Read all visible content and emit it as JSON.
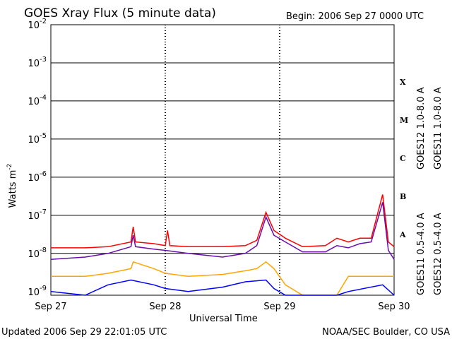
{
  "chart_data": {
    "type": "line",
    "title": "GOES Xray Flux (5 minute data)",
    "begin_label": "Begin:  2006 Sep 27 0000 UTC",
    "xlabel": "Universal Time",
    "ylabel": "Watts m",
    "ylabel_superscript": "-2",
    "y_scale": "log",
    "ylim": [
      8e-10,
      0.01
    ],
    "x_ticks": [
      "Sep 27",
      "Sep 28",
      "Sep 29",
      "Sep 30"
    ],
    "x_unit": "days since Sep 27 0000 UTC",
    "xlim": [
      0,
      3
    ],
    "y_ticks": [
      {
        "base": "10",
        "exp": "-9",
        "value": 1e-09
      },
      {
        "base": "10",
        "exp": "-8",
        "value": 1e-08
      },
      {
        "base": "10",
        "exp": "-7",
        "value": 1e-07
      },
      {
        "base": "10",
        "exp": "-6",
        "value": 1e-06
      },
      {
        "base": "10",
        "exp": "-5",
        "value": 1e-05
      },
      {
        "base": "10",
        "exp": "-4",
        "value": 0.0001
      },
      {
        "base": "10",
        "exp": "-3",
        "value": 0.001
      },
      {
        "base": "10",
        "exp": "-2",
        "value": 0.01
      }
    ],
    "flare_classes": [
      {
        "label": "A",
        "value": 1e-08
      },
      {
        "label": "B",
        "value": 1e-07
      },
      {
        "label": "C",
        "value": 1e-06
      },
      {
        "label": "M",
        "value": 1e-05
      },
      {
        "label": "X",
        "value": 0.0001
      }
    ],
    "grid": "horizontal at each decade, dashed vertical at day boundaries",
    "series": [
      {
        "name": "GOES12 1.0-8.0 A",
        "color": "#ff0000",
        "points": [
          [
            0.0,
            1.4e-08
          ],
          [
            0.3,
            1.4e-08
          ],
          [
            0.5,
            1.5e-08
          ],
          [
            0.7,
            2e-08
          ],
          [
            0.72,
            5e-08
          ],
          [
            0.74,
            2e-08
          ],
          [
            0.9,
            1.8e-08
          ],
          [
            1.0,
            1.6e-08
          ],
          [
            1.02,
            4e-08
          ],
          [
            1.04,
            1.6e-08
          ],
          [
            1.2,
            1.5e-08
          ],
          [
            1.5,
            1.5e-08
          ],
          [
            1.7,
            1.6e-08
          ],
          [
            1.8,
            2.2e-08
          ],
          [
            1.88,
            1.2e-07
          ],
          [
            1.95,
            4e-08
          ],
          [
            2.05,
            2.5e-08
          ],
          [
            2.2,
            1.5e-08
          ],
          [
            2.4,
            1.6e-08
          ],
          [
            2.5,
            2.5e-08
          ],
          [
            2.6,
            2e-08
          ],
          [
            2.7,
            2.5e-08
          ],
          [
            2.8,
            2.5e-08
          ],
          [
            2.9,
            3.5e-07
          ],
          [
            2.95,
            2e-08
          ],
          [
            3.0,
            1.5e-08
          ]
        ]
      },
      {
        "name": "GOES11 1.0-8.0 A",
        "color": "#6a0dad",
        "points": [
          [
            0.0,
            7e-09
          ],
          [
            0.3,
            8e-09
          ],
          [
            0.5,
            1e-08
          ],
          [
            0.7,
            1.5e-08
          ],
          [
            0.72,
            3e-08
          ],
          [
            0.74,
            1.5e-08
          ],
          [
            0.9,
            1.3e-08
          ],
          [
            1.0,
            1.2e-08
          ],
          [
            1.2,
            1e-08
          ],
          [
            1.5,
            8e-09
          ],
          [
            1.7,
            1e-08
          ],
          [
            1.8,
            1.6e-08
          ],
          [
            1.88,
            9e-08
          ],
          [
            1.95,
            3e-08
          ],
          [
            2.05,
            2e-08
          ],
          [
            2.2,
            1.1e-08
          ],
          [
            2.4,
            1.1e-08
          ],
          [
            2.5,
            1.6e-08
          ],
          [
            2.6,
            1.4e-08
          ],
          [
            2.7,
            1.8e-08
          ],
          [
            2.8,
            2e-08
          ],
          [
            2.9,
            2.2e-07
          ],
          [
            2.95,
            1.2e-08
          ],
          [
            3.0,
            7e-09
          ]
        ]
      },
      {
        "name": "GOES11 0.5-4.0 A",
        "color": "#ffa500",
        "points": [
          [
            0.0,
            2.5e-09
          ],
          [
            0.3,
            2.5e-09
          ],
          [
            0.5,
            3e-09
          ],
          [
            0.7,
            4e-09
          ],
          [
            0.72,
            6e-09
          ],
          [
            0.9,
            4e-09
          ],
          [
            1.0,
            3e-09
          ],
          [
            1.2,
            2.5e-09
          ],
          [
            1.5,
            2.8e-09
          ],
          [
            1.7,
            3.5e-09
          ],
          [
            1.8,
            4e-09
          ],
          [
            1.88,
            6e-09
          ],
          [
            1.95,
            4e-09
          ],
          [
            2.05,
            1.5e-09
          ],
          [
            2.2,
            8e-10
          ],
          [
            2.5,
            8e-10
          ],
          [
            2.6,
            2.5e-09
          ],
          [
            2.7,
            2.5e-09
          ],
          [
            2.8,
            2.5e-09
          ],
          [
            3.0,
            2.5e-09
          ]
        ]
      },
      {
        "name": "GOES12 0.5-4.0 A",
        "color": "#0000ff",
        "points": [
          [
            0.0,
            1e-09
          ],
          [
            0.3,
            8e-10
          ],
          [
            0.5,
            1.5e-09
          ],
          [
            0.7,
            2e-09
          ],
          [
            0.9,
            1.5e-09
          ],
          [
            1.0,
            1.2e-09
          ],
          [
            1.2,
            1e-09
          ],
          [
            1.5,
            1.3e-09
          ],
          [
            1.7,
            1.8e-09
          ],
          [
            1.88,
            2e-09
          ],
          [
            1.95,
            1.2e-09
          ],
          [
            2.05,
            8e-10
          ],
          [
            2.5,
            8e-10
          ],
          [
            2.6,
            1e-09
          ],
          [
            2.9,
            1.5e-09
          ],
          [
            3.0,
            8e-10
          ]
        ]
      }
    ]
  },
  "footer": {
    "updated": "Updated 2006 Sep 29 22:01:05 UTC",
    "source": "NOAA/SEC Boulder, CO USA"
  }
}
